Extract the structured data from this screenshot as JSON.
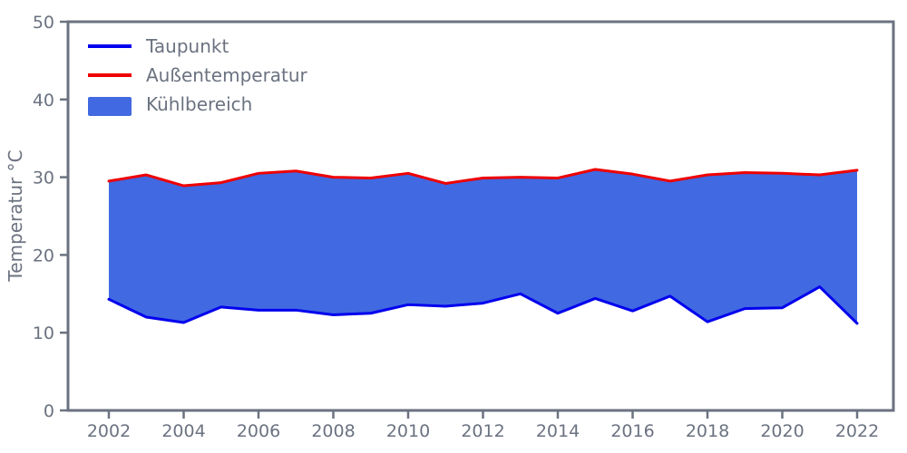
{
  "figure": {
    "background": "#ffffff",
    "axis_color": "#6b7280"
  },
  "chart_data": {
    "type": "area",
    "title": "",
    "xlabel": "",
    "ylabel": "Temperatur °C",
    "grid": false,
    "legend_position": "upper-left",
    "xlim": [
      2001,
      2023
    ],
    "ylim": [
      0,
      50
    ],
    "xticks": [
      2002,
      2004,
      2006,
      2008,
      2010,
      2012,
      2014,
      2016,
      2018,
      2020,
      2022
    ],
    "yticks": [
      0,
      10,
      20,
      30,
      40,
      50
    ],
    "x": [
      2002,
      2003,
      2004,
      2005,
      2006,
      2007,
      2008,
      2009,
      2010,
      2011,
      2012,
      2013,
      2014,
      2015,
      2016,
      2017,
      2018,
      2019,
      2020,
      2021,
      2022
    ],
    "series": [
      {
        "name": "Taupunkt",
        "color": "#0000ee",
        "values": [
          14.3,
          12.0,
          11.3,
          13.3,
          12.9,
          12.9,
          12.3,
          12.5,
          13.6,
          13.4,
          13.8,
          15.0,
          12.5,
          14.4,
          12.8,
          14.7,
          11.4,
          13.1,
          13.2,
          15.9,
          11.2
        ]
      },
      {
        "name": "Außentemperatur",
        "color": "#ee0000",
        "values": [
          29.5,
          30.3,
          28.9,
          29.3,
          30.5,
          30.8,
          30.0,
          29.9,
          30.5,
          29.2,
          29.9,
          30.0,
          29.9,
          31.0,
          30.4,
          29.5,
          30.3,
          30.6,
          30.5,
          30.3,
          30.9
        ]
      }
    ],
    "area": {
      "name": "Kühlbereich",
      "color": "#4169e1",
      "between": [
        "Außentemperatur",
        "Taupunkt"
      ]
    }
  }
}
